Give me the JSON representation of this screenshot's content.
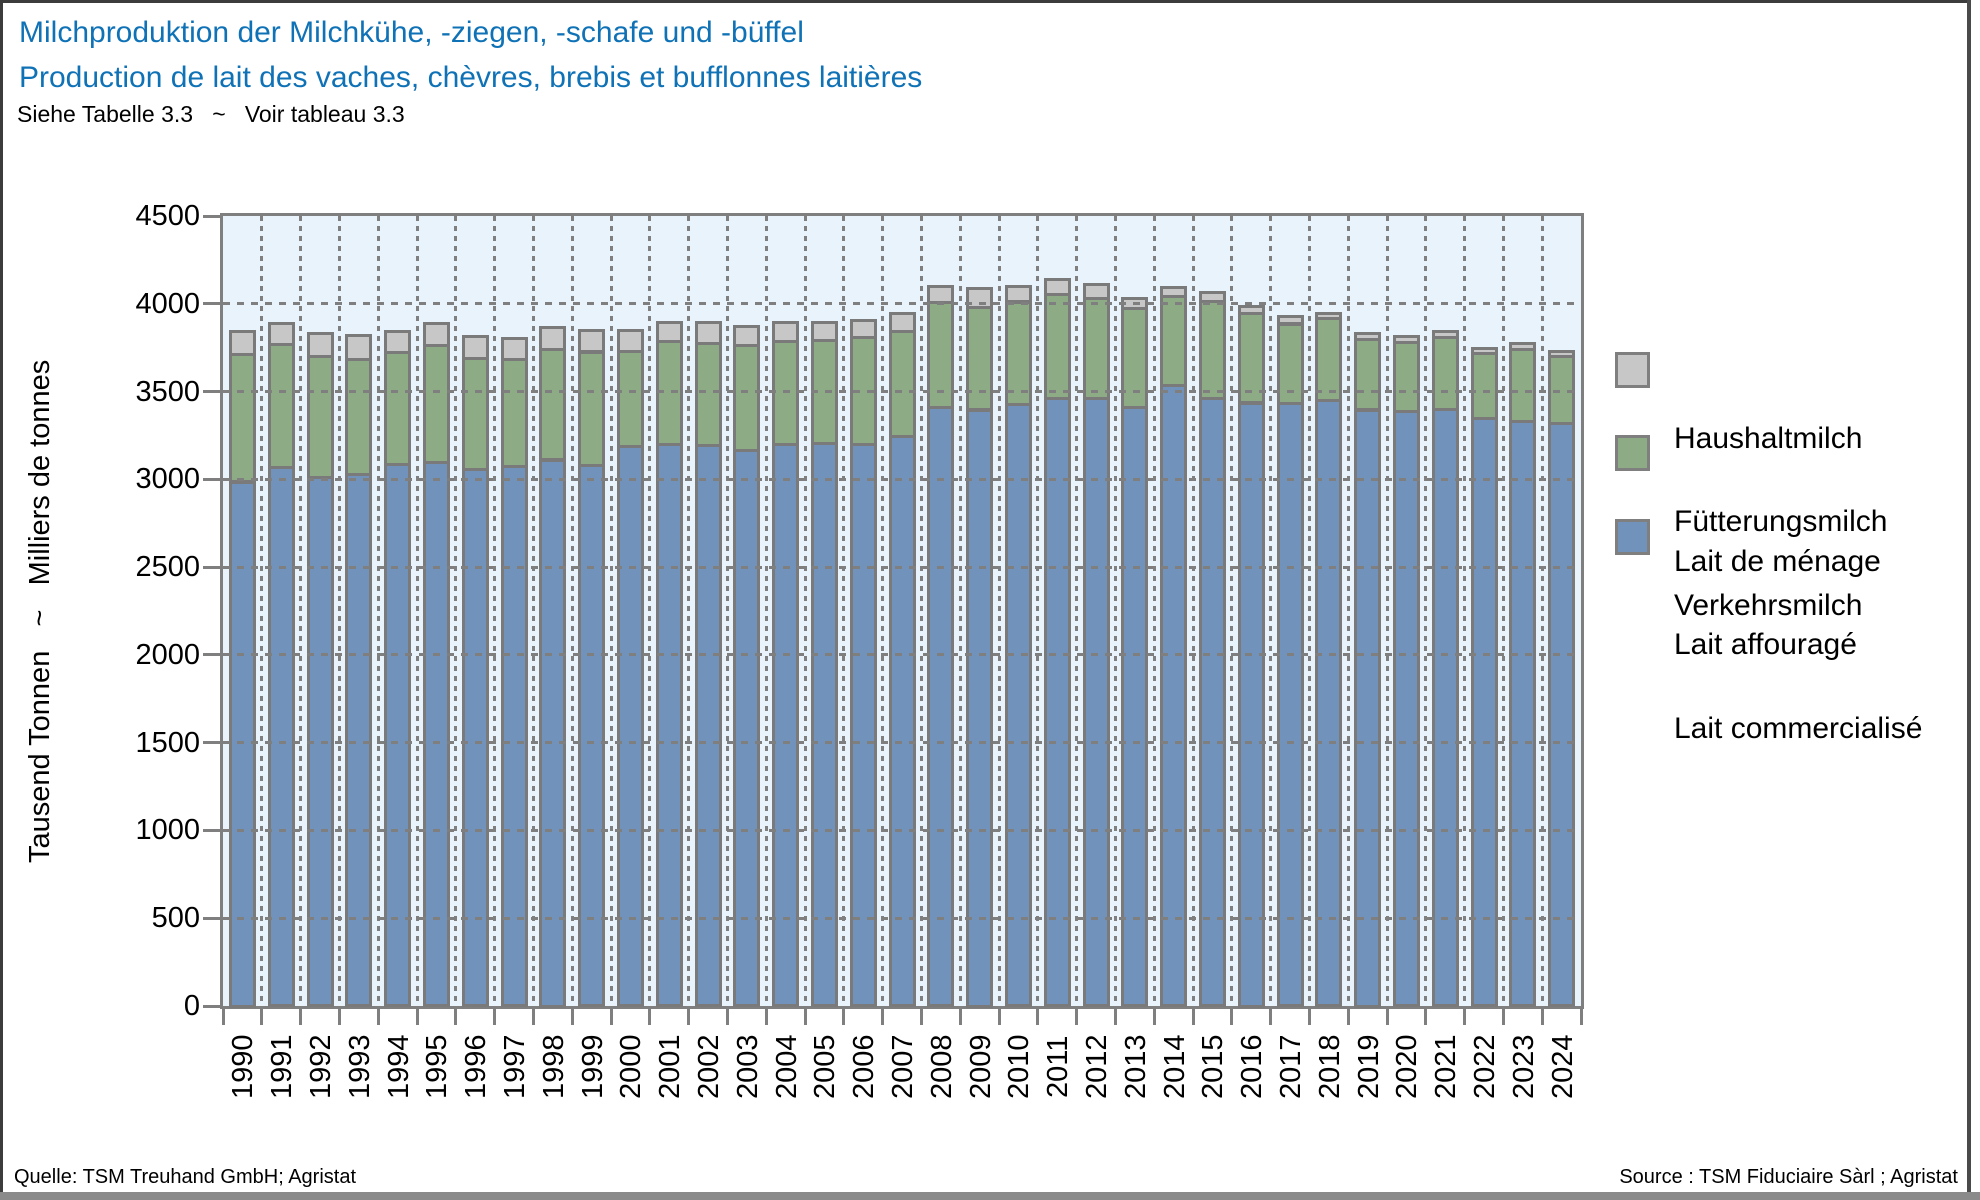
{
  "header": {
    "title_de": "Milchproduktion der Milchkühe, -ziegen, -schafe und -büffel",
    "title_fr": "Production de lait des vaches, chèvres, brebis et bufflonnes laitières",
    "table_ref": "Siehe Tabelle 3.3   ~   Voir tableau 3.3"
  },
  "y_axis": {
    "label": "Tausend Tonnen   ~   Milliers de tonnes",
    "ticks": [
      0,
      500,
      1000,
      1500,
      2000,
      2500,
      3000,
      3500,
      4000,
      4500
    ]
  },
  "legend": {
    "items": [
      {
        "label_de": "Haushaltmilch",
        "label_fr": "Lait de ménage",
        "color": "#c7c7c7"
      },
      {
        "label_de": "Fütterungsmilch",
        "label_fr": "Lait affouragé",
        "color": "#8dac85"
      },
      {
        "label_de": "Verkehrsmilch",
        "label_fr": "Lait commercialisé",
        "color": "#7193bb"
      }
    ]
  },
  "footer": {
    "source_left": "Quelle: TSM Treuhand GmbH; Agristat",
    "source_right": "Source : TSM Fiduciaire Sàrl ; Agristat"
  },
  "colors": {
    "title_blue": "#0f72b6",
    "plot_bg": "#e9f3fc",
    "bar_blue": "#7193bb",
    "bar_green": "#8dac85",
    "bar_gray": "#c7c7c7",
    "border_gray": "#7a7a7a",
    "grid_gray": "#7f7f7f",
    "page_border_dark": "#3c3c3c",
    "page_border_bottom": "#8a8a8a"
  },
  "chart_data": {
    "type": "bar",
    "stacked": true,
    "title": "Milchproduktion der Milchkühe, -ziegen, -schafe und -büffel ~ Production de lait des vaches, chèvres, brebis et bufflonnes laitières",
    "xlabel": "",
    "ylabel": "Tausend Tonnen ~ Milliers de tonnes",
    "ylim": [
      0,
      4500
    ],
    "grid": true,
    "legend_position": "right",
    "categories": [
      "1990",
      "1991",
      "1992",
      "1993",
      "1994",
      "1995",
      "1996",
      "1997",
      "1998",
      "1999",
      "2000",
      "2001",
      "2002",
      "2003",
      "2004",
      "2005",
      "2006",
      "2007",
      "2008",
      "2009",
      "2010",
      "2011",
      "2012",
      "2013",
      "2014",
      "2015",
      "2016",
      "2017",
      "2018",
      "2019",
      "2020",
      "2021",
      "2022",
      "2023",
      "2024"
    ],
    "series": [
      {
        "key": "verkehrsmilch",
        "name": "Verkehrsmilch / Lait commercialisé",
        "color": "#7193bb",
        "values": [
          2985,
          3065,
          3010,
          3025,
          3085,
          3095,
          3055,
          3075,
          3110,
          3080,
          3185,
          3200,
          3195,
          3165,
          3200,
          3205,
          3200,
          3245,
          3410,
          3395,
          3425,
          3460,
          3460,
          3410,
          3535,
          3460,
          3435,
          3430,
          3450,
          3395,
          3385,
          3400,
          3345,
          3330,
          3320
        ]
      },
      {
        "key": "fuetterungsmilch",
        "name": "Fütterungsmilch / Lait affouragé",
        "color": "#8dac85",
        "values": [
          725,
          705,
          690,
          660,
          635,
          665,
          635,
          610,
          630,
          645,
          545,
          585,
          580,
          595,
          585,
          585,
          610,
          595,
          595,
          585,
          585,
          595,
          570,
          565,
          505,
          555,
          510,
          455,
          465,
          400,
          395,
          410,
          370,
          410,
          380
        ]
      },
      {
        "key": "haushaltmilch",
        "name": "Haushaltmilch / Lait de ménage",
        "color": "#c7c7c7",
        "values": [
          135,
          120,
          130,
          135,
          120,
          130,
          125,
          120,
          125,
          125,
          120,
          110,
          120,
          110,
          110,
          105,
          95,
          105,
          95,
          105,
          90,
          85,
          80,
          55,
          55,
          50,
          40,
          40,
          30,
          35,
          35,
          35,
          30,
          35,
          30
        ]
      }
    ]
  }
}
